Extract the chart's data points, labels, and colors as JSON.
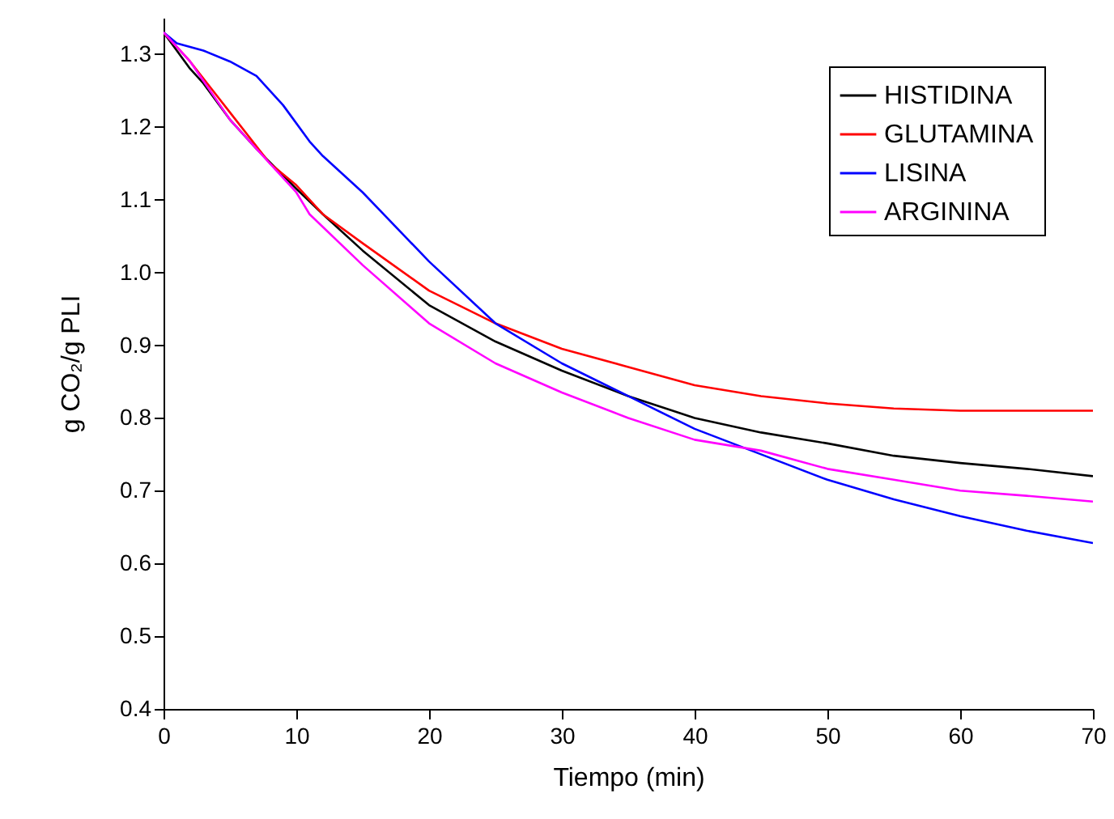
{
  "chart_data": {
    "type": "line",
    "xlabel": "Tiempo (min)",
    "ylabel": "g CO₂/g PLI",
    "xlim": [
      0,
      70
    ],
    "xticks": [
      0,
      10,
      20,
      30,
      40,
      50,
      60,
      70
    ],
    "ylim": [
      0.4,
      1.35
    ],
    "yticks": [
      0.4,
      0.5,
      0.6,
      0.7,
      0.8,
      0.9,
      {
        "value": 1.0,
        "label": "1.0"
      },
      1.1,
      1.2,
      1.3
    ],
    "grid": false,
    "legend": "top right",
    "marker": "none",
    "line_style": "solid",
    "series": [
      {
        "name": "HISTIDINA",
        "color": "#000000",
        "x": [
          0,
          2,
          3,
          5,
          7,
          10,
          12,
          15,
          20,
          25,
          30,
          35,
          40,
          45,
          50,
          55,
          60,
          65,
          70
        ],
        "values": [
          1.33,
          1.28,
          1.26,
          1.21,
          1.17,
          1.115,
          1.08,
          1.03,
          0.955,
          0.905,
          0.865,
          0.83,
          0.8,
          0.78,
          0.765,
          0.748,
          0.738,
          0.73,
          0.72
        ]
      },
      {
        "name": "GLUTAMINA",
        "color": "#ff0000",
        "x": [
          0,
          2,
          5,
          8,
          10,
          12,
          15,
          20,
          25,
          30,
          35,
          40,
          45,
          50,
          55,
          60,
          70
        ],
        "values": [
          1.33,
          1.29,
          1.22,
          1.15,
          1.12,
          1.08,
          1.04,
          0.975,
          0.93,
          0.895,
          0.87,
          0.845,
          0.83,
          0.82,
          0.813,
          0.81,
          0.81
        ]
      },
      {
        "name": "LISINA",
        "color": "#0000ff",
        "x": [
          0,
          1,
          3,
          5,
          7,
          9,
          11,
          12,
          15,
          20,
          25,
          30,
          35,
          40,
          45,
          50,
          55,
          60,
          65,
          70
        ],
        "values": [
          1.33,
          1.315,
          1.305,
          1.29,
          1.27,
          1.23,
          1.18,
          1.16,
          1.11,
          1.015,
          0.93,
          0.875,
          0.83,
          0.785,
          0.75,
          0.715,
          0.688,
          0.665,
          0.645,
          0.628
        ]
      },
      {
        "name": "ARGININA",
        "color": "#ff00ff",
        "x": [
          0,
          2,
          5,
          8,
          10,
          11,
          15,
          20,
          25,
          30,
          35,
          40,
          45,
          50,
          55,
          60,
          65,
          70
        ],
        "values": [
          1.33,
          1.29,
          1.21,
          1.15,
          1.11,
          1.08,
          1.01,
          0.93,
          0.875,
          0.835,
          0.8,
          0.77,
          0.755,
          0.73,
          0.715,
          0.7,
          0.693,
          0.685
        ]
      }
    ]
  }
}
